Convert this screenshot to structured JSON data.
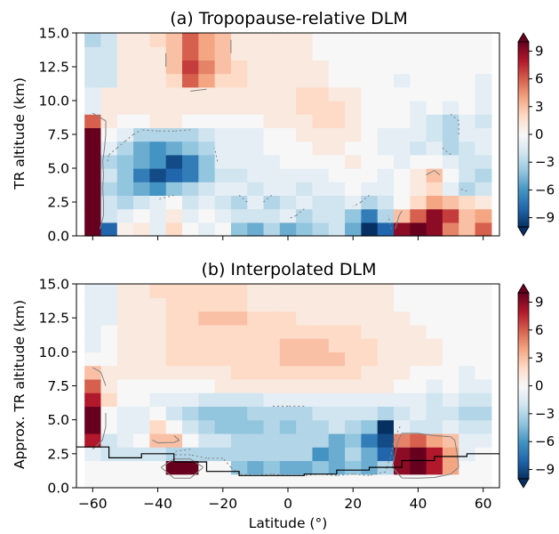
{
  "figure": {
    "xlabel": "Latitude (°)",
    "x_ticks": [
      "−60",
      "−40",
      "−20",
      "0",
      "20",
      "40",
      "60"
    ],
    "x_tick_values": [
      -60,
      -40,
      -20,
      0,
      20,
      40,
      60
    ]
  },
  "colors": {
    "diverging_scale": [
      "#053061",
      "#2166ac",
      "#4393c3",
      "#92c5de",
      "#d1e5f0",
      "#f7f7f7",
      "#fddbc7",
      "#f4a582",
      "#d6604d",
      "#b2182b",
      "#67001f"
    ],
    "contour_line": "#808080",
    "boundary_line": "#000000"
  },
  "chart_data": [
    {
      "type": "heatmap",
      "title": "(a) Tropopause-relative DLM",
      "ylabel": "TR altitude (km)",
      "xlim": [
        -65,
        65
      ],
      "ylim": [
        0,
        15
      ],
      "y_ticks": [
        "0.0",
        "2.5",
        "5.0",
        "7.5",
        "10.0",
        "12.5",
        "15.0"
      ],
      "y_tick_values": [
        0,
        2.5,
        5,
        7.5,
        10,
        12.5,
        15
      ],
      "x_ticklabels_shown": false,
      "colorbar": {
        "range": [
          -10,
          10
        ],
        "ticks": [
          "9",
          "6",
          "3",
          "0",
          "−3",
          "−6",
          "−9"
        ],
        "tick_values": [
          9,
          6,
          3,
          0,
          -3,
          -6,
          -9
        ],
        "extend": "both"
      },
      "lat_centers": [
        -60,
        -55,
        -50,
        -45,
        -40,
        -35,
        -30,
        -25,
        -20,
        -15,
        -10,
        -5,
        0,
        5,
        10,
        15,
        20,
        25,
        30,
        35,
        40,
        45,
        50,
        55,
        60
      ],
      "alt_centers": [
        0.5,
        1.5,
        2.5,
        3.5,
        4.5,
        5.5,
        6.5,
        7.5,
        8.5,
        9.5,
        10.5,
        11.5,
        12.5,
        13.5,
        14.5
      ],
      "values": [
        [
          10,
          -8,
          0.5,
          1,
          -1,
          2,
          0,
          -1,
          0,
          -4,
          -5,
          -3,
          -5,
          -4,
          -3,
          -2,
          -5,
          -10,
          -8,
          9,
          11,
          9,
          5,
          3,
          6
        ],
        [
          10,
          -2,
          -1,
          0,
          -1,
          1,
          -1,
          0,
          -1,
          -2,
          -2,
          -2,
          -1,
          -3,
          -2,
          -2,
          -4,
          -7,
          -3,
          3,
          6,
          9,
          7,
          3,
          4
        ],
        [
          10,
          -2,
          -3,
          -2,
          -1,
          0,
          -2,
          -1,
          -2,
          -3,
          -1,
          -3,
          -2,
          -1,
          -2,
          -2,
          -1,
          -3,
          -2,
          0,
          2,
          4,
          3,
          2,
          1
        ],
        [
          10,
          -3,
          -4,
          -5,
          -6,
          -4,
          -3,
          -2,
          -1,
          -1,
          -2,
          -1,
          -1,
          -2,
          -1,
          -1,
          0,
          -1,
          -1,
          0,
          1,
          2,
          -1,
          -3,
          -2
        ],
        [
          10,
          -2,
          -4,
          -7,
          -9,
          -8,
          -7,
          -4,
          -2,
          -2,
          -1,
          -1,
          -1,
          -1,
          -1,
          0,
          0,
          0,
          -1,
          0,
          1,
          3,
          0,
          -2,
          -3
        ],
        [
          10,
          -3,
          -4,
          -5,
          -6,
          -9,
          -7,
          -4,
          -1,
          -1,
          -1,
          -1,
          0,
          0,
          0,
          0,
          1,
          0,
          0,
          -1,
          0,
          0,
          -1,
          -2,
          -2
        ],
        [
          10,
          -1,
          -3,
          -5,
          -6,
          -5,
          -4,
          -3,
          -1,
          -1,
          -1,
          0,
          0,
          0,
          1,
          1,
          0,
          0,
          -1,
          -1,
          -2,
          -1,
          -3,
          -2,
          -1
        ],
        [
          10,
          0,
          -1,
          -3,
          -3,
          -3,
          -3,
          -2,
          -1,
          -1,
          -1,
          0,
          0,
          1,
          1,
          1,
          1,
          0,
          -1,
          -1,
          -1,
          -2,
          -3,
          -1,
          -1
        ],
        [
          6,
          1,
          0,
          0,
          1,
          1,
          0,
          0,
          0,
          0,
          0,
          1,
          1,
          1,
          2,
          2,
          1,
          0,
          0,
          0,
          -1,
          -2,
          -3,
          -1,
          -2
        ],
        [
          -1,
          1,
          1,
          1,
          1,
          1,
          1,
          1,
          1,
          1,
          1,
          1,
          1,
          2,
          2,
          2,
          1,
          0,
          0,
          0,
          -1,
          0,
          -1,
          0,
          -1
        ],
        [
          -1,
          1,
          1,
          1,
          1,
          1,
          1,
          1,
          1,
          1,
          1,
          1,
          1,
          2,
          2,
          1,
          1,
          0,
          0,
          0,
          0,
          0,
          0,
          0,
          -1
        ],
        [
          -2,
          -2,
          1,
          1,
          1,
          2,
          6,
          4,
          2,
          2,
          1,
          1,
          1,
          1,
          1,
          0,
          0,
          0,
          0,
          -1,
          0,
          0,
          0,
          0,
          -1
        ],
        [
          -2,
          -2,
          1,
          1,
          1,
          3,
          7,
          5,
          3,
          2,
          1,
          1,
          1,
          1,
          1,
          0,
          0,
          0,
          0,
          0,
          0,
          0,
          0,
          0,
          0
        ],
        [
          -2,
          -2,
          1,
          1,
          1,
          3,
          6,
          4,
          3,
          1,
          1,
          1,
          1,
          1,
          0,
          0,
          0,
          0,
          0,
          0,
          0,
          0,
          0,
          0,
          0
        ],
        [
          -3,
          -2,
          1,
          1,
          2,
          3,
          6,
          4,
          3,
          1,
          1,
          1,
          1,
          1,
          0,
          0,
          0,
          0,
          0,
          0,
          0,
          0,
          0,
          0,
          0
        ]
      ]
    },
    {
      "type": "heatmap",
      "title": "(b) Interpolated DLM",
      "ylabel": "Approx. TR altitude (km)",
      "xlim": [
        -65,
        65
      ],
      "ylim": [
        0,
        15
      ],
      "y_ticks": [
        "0.0",
        "2.5",
        "5.0",
        "7.5",
        "10.0",
        "12.5",
        "15.0"
      ],
      "y_tick_values": [
        0,
        2.5,
        5,
        7.5,
        10,
        12.5,
        15
      ],
      "x_ticklabels_shown": true,
      "colorbar": {
        "range": [
          -10,
          10
        ],
        "ticks": [
          "9",
          "6",
          "3",
          "0",
          "−3",
          "−6",
          "−9"
        ],
        "tick_values": [
          9,
          6,
          3,
          0,
          -3,
          -6,
          -9
        ],
        "extend": "both"
      },
      "boundary": {
        "lat": [
          -65,
          -55,
          -55,
          -45,
          -45,
          -35,
          -35,
          -25,
          -25,
          -15,
          -15,
          5,
          5,
          15,
          15,
          25,
          25,
          35,
          35,
          45,
          45,
          55,
          55,
          65
        ],
        "alt": [
          3.0,
          3.0,
          2.2,
          2.2,
          2.5,
          2.5,
          1.9,
          1.9,
          1.2,
          1.2,
          0.9,
          0.9,
          1.0,
          1.0,
          1.3,
          1.3,
          1.5,
          1.5,
          2.0,
          2.0,
          2.3,
          2.3,
          2.5,
          2.5
        ]
      },
      "lat_centers": [
        -60,
        -55,
        -50,
        -45,
        -40,
        -35,
        -30,
        -25,
        -20,
        -15,
        -10,
        -5,
        0,
        5,
        10,
        15,
        20,
        25,
        30,
        35,
        40,
        45,
        50,
        55,
        60
      ],
      "alt_centers": [
        0.5,
        1.5,
        2.5,
        3.5,
        4.5,
        5.5,
        6.5,
        7.5,
        8.5,
        9.5,
        10.5,
        11.5,
        12.5,
        13.5,
        14.5
      ],
      "values": [
        [
          0,
          0,
          0,
          0,
          0,
          0,
          0,
          0,
          0,
          0,
          0,
          0,
          0,
          0,
          0,
          0,
          0,
          0,
          0,
          0,
          0,
          0,
          0,
          0,
          0
        ],
        [
          0,
          0,
          0,
          0,
          0,
          10,
          10,
          0,
          0,
          -4,
          -5,
          -4,
          -5,
          -5,
          -4,
          -5,
          -4,
          -5,
          -3,
          9,
          10,
          8,
          4,
          0,
          0
        ],
        [
          -1,
          -2,
          -2,
          -2,
          -2,
          -3,
          -3,
          -3,
          -3,
          -3,
          -3,
          -3,
          -3,
          -3,
          -6,
          -5,
          -3,
          -5,
          -8,
          9,
          10,
          8,
          4,
          -1,
          0
        ],
        [
          8,
          -2,
          -1,
          0,
          3,
          3,
          0,
          -2,
          -2,
          -3,
          -3,
          -3,
          -3,
          -3,
          -3,
          -5,
          -4,
          -7,
          -9,
          5,
          6,
          4,
          3,
          -1,
          -1
        ],
        [
          10,
          0,
          -1,
          -1,
          2,
          0,
          -2,
          -3,
          -4,
          -4,
          -4,
          -3,
          -4,
          -3,
          -3,
          -2,
          -3,
          -4,
          -10,
          -1,
          -2,
          -2,
          -1,
          -2,
          -2
        ],
        [
          10,
          0,
          -1,
          -1,
          0,
          -2,
          -3,
          -4,
          -4,
          -4,
          -3,
          -3,
          -3,
          -3,
          -2,
          -2,
          -2,
          -2,
          -3,
          -2,
          -1,
          -2,
          -2,
          -3,
          -3
        ],
        [
          8,
          2,
          0,
          0,
          -1,
          -1,
          -1,
          -2,
          -2,
          -2,
          -2,
          -1,
          -1,
          -1,
          -1,
          -1,
          -1,
          -1,
          -1,
          -1,
          -1,
          -2,
          -1,
          -2,
          -2
        ],
        [
          6,
          1,
          0,
          0,
          0,
          0,
          0,
          0,
          1,
          1,
          1,
          1,
          1,
          1,
          1,
          1,
          1,
          1,
          1,
          0,
          0,
          -1,
          0,
          -1,
          -1
        ],
        [
          3,
          1,
          1,
          1,
          1,
          1,
          1,
          1,
          1,
          2,
          2,
          2,
          2,
          2,
          2,
          2,
          2,
          1,
          1,
          1,
          0,
          0,
          0,
          -1,
          0
        ],
        [
          0,
          0,
          1,
          1,
          1,
          2,
          2,
          2,
          2,
          2,
          2,
          2,
          3,
          3,
          3,
          3,
          2,
          2,
          1,
          1,
          1,
          1,
          0,
          0,
          0
        ],
        [
          -1,
          0,
          1,
          1,
          1,
          2,
          2,
          2,
          2,
          2,
          2,
          2,
          3,
          3,
          3,
          2,
          2,
          2,
          1,
          1,
          1,
          1,
          0,
          0,
          0
        ],
        [
          -1,
          0,
          1,
          1,
          1,
          2,
          2,
          2,
          2,
          2,
          2,
          2,
          2,
          2,
          2,
          2,
          2,
          1,
          1,
          1,
          1,
          0,
          0,
          0,
          0
        ],
        [
          -1,
          -1,
          1,
          1,
          1,
          2,
          2,
          3,
          3,
          3,
          2,
          2,
          2,
          1,
          1,
          1,
          1,
          1,
          1,
          1,
          0,
          0,
          0,
          0,
          0
        ],
        [
          -1,
          -1,
          1,
          1,
          1,
          2,
          2,
          2,
          2,
          2,
          1,
          1,
          1,
          1,
          1,
          1,
          1,
          1,
          1,
          0,
          0,
          0,
          0,
          0,
          0
        ],
        [
          -1,
          -1,
          1,
          1,
          2,
          2,
          2,
          2,
          2,
          2,
          1,
          1,
          1,
          1,
          1,
          1,
          1,
          1,
          1,
          0,
          0,
          0,
          0,
          0,
          0
        ]
      ]
    }
  ]
}
